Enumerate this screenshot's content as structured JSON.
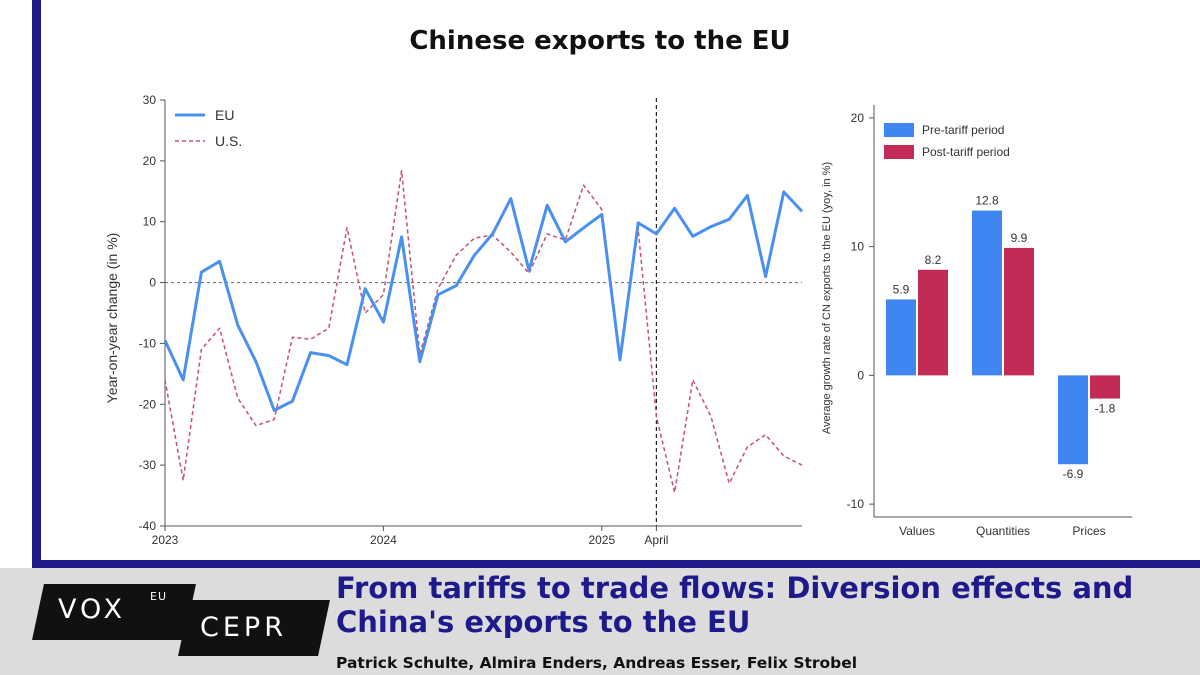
{
  "header": {
    "title": "Chinese exports to the EU"
  },
  "article": {
    "title": "From tariffs to trade flows: Diversion effects and China's exports to the EU",
    "authors": "Patrick Schulte, Almira Enders, Andreas Esser, Felix Strobel"
  },
  "logos": {
    "vox": "VOX",
    "eu": "EU",
    "cepr": "CEPR"
  },
  "colors": {
    "brand_navy": "#1e1a8c",
    "eu_line": "#4a90f0",
    "us_line": "#c8506e",
    "pre_bar": "#3f86f0",
    "post_bar": "#c32b57"
  },
  "chart_data": [
    {
      "type": "line",
      "title": "",
      "xlabel": "",
      "ylabel": "Year-on-year change (in %)",
      "ylim": [
        -40,
        30
      ],
      "yticks": [
        -40,
        -30,
        -20,
        -10,
        0,
        10,
        20,
        30
      ],
      "x": [
        "2023-01",
        "2023-02",
        "2023-03",
        "2023-04",
        "2023-05",
        "2023-06",
        "2023-07",
        "2023-08",
        "2023-09",
        "2023-10",
        "2023-11",
        "2023-12",
        "2024-01",
        "2024-02",
        "2024-03",
        "2024-04",
        "2024-05",
        "2024-06",
        "2024-07",
        "2024-08",
        "2024-09",
        "2024-10",
        "2024-11",
        "2024-12",
        "2025-01",
        "2025-02",
        "2025-03",
        "2025-04",
        "2025-05",
        "2025-06",
        "2025-07",
        "2025-08",
        "2025-09",
        "2025-10",
        "2025-11",
        "2025-12"
      ],
      "xticks": [
        {
          "x": "2023-01",
          "label": "2023"
        },
        {
          "x": "2024-01",
          "label": "2024"
        },
        {
          "x": "2025-01",
          "label": "2025"
        },
        {
          "x": "2025-04",
          "label": "April"
        }
      ],
      "reference_lines": [
        {
          "axis": "y",
          "value": 0,
          "style": "dotted"
        },
        {
          "axis": "x",
          "value": "2025-04",
          "style": "dashed"
        }
      ],
      "legend": "top-left",
      "series": [
        {
          "name": "EU",
          "style": "solid",
          "color": "#4a90f0",
          "values": [
            -9.5,
            -16,
            1.7,
            3.5,
            -7,
            -13,
            -21,
            -19.5,
            -11.5,
            -12,
            -13.5,
            -1,
            -6.5,
            7.5,
            -13,
            -2,
            -0.5,
            4.5,
            8,
            13.8,
            2,
            12.7,
            6.7,
            9,
            11.2,
            -12.7,
            9.8,
            8,
            12.2,
            7.6,
            9.2,
            10.4,
            14.3,
            1,
            14.9,
            11.7
          ]
        },
        {
          "name": "U.S.",
          "style": "dashed",
          "color": "#c8506e",
          "values": [
            -16,
            -32.5,
            -11,
            -7.5,
            -19,
            -23.5,
            -22.5,
            -9,
            -9.3,
            -7.5,
            9,
            -5,
            -2,
            18.4,
            -11.8,
            -1,
            4.5,
            7.3,
            7.8,
            5,
            1.5,
            8,
            7,
            16,
            12,
            -12,
            8.7,
            -22,
            -34.5,
            -16,
            -22,
            -33,
            -27,
            -25,
            -28.5,
            -30
          ]
        }
      ]
    },
    {
      "type": "bar",
      "title": "",
      "xlabel": "",
      "ylabel": "Average growth rate of CN exports to the EU (yoy, in %)",
      "ylim": [
        -11,
        21
      ],
      "yticks": [
        -10,
        0,
        10,
        20
      ],
      "categories": [
        "Values",
        "Quantities",
        "Prices"
      ],
      "legend": "top-left",
      "series": [
        {
          "name": "Pre-tariff period",
          "color": "#3f86f0",
          "values": [
            5.9,
            12.8,
            -6.9
          ]
        },
        {
          "name": "Post-tariff period",
          "color": "#c32b57",
          "values": [
            8.2,
            9.9,
            -1.8
          ]
        }
      ]
    }
  ]
}
